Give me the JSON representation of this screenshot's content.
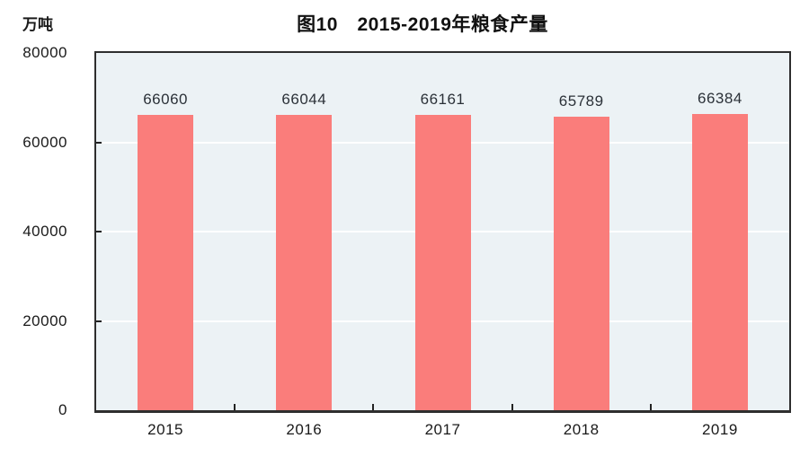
{
  "chart_data": {
    "type": "bar",
    "title": "图10　2015-2019年粮食产量",
    "unit_label": "万吨",
    "categories": [
      "2015",
      "2016",
      "2017",
      "2018",
      "2019"
    ],
    "values": [
      66060,
      66044,
      66161,
      65789,
      66384
    ],
    "value_labels": [
      "66060",
      "66044",
      "66161",
      "65789",
      "66384"
    ],
    "xlabel": "",
    "ylabel": "万吨",
    "ylim": [
      0,
      80000
    ],
    "yticks": [
      0,
      20000,
      40000,
      60000,
      80000
    ],
    "ytick_labels": [
      "0",
      "20000",
      "40000",
      "60000",
      "80000"
    ],
    "grid": true,
    "gridline_values": [
      20000,
      40000,
      60000
    ],
    "legend": null,
    "colors": {
      "bar_fill": "#fa7d7b",
      "plot_background": "#ecf2f5",
      "gridline": "#ffffff",
      "border": "#2e2e2e",
      "text": "#1a1a1a"
    }
  }
}
